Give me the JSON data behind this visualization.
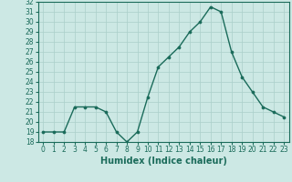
{
  "x": [
    0,
    1,
    2,
    3,
    4,
    5,
    6,
    7,
    8,
    9,
    10,
    11,
    12,
    13,
    14,
    15,
    16,
    17,
    18,
    19,
    20,
    21,
    22,
    23
  ],
  "y": [
    19,
    19,
    19,
    21.5,
    21.5,
    21.5,
    21,
    19,
    18,
    19,
    22.5,
    25.5,
    26.5,
    27.5,
    29,
    30,
    31.5,
    31,
    27,
    24.5,
    23,
    21.5,
    21,
    20.5
  ],
  "line_color": "#1a6b5a",
  "marker_color": "#1a6b5a",
  "bg_color": "#cce8e4",
  "grid_color": "#aacfca",
  "xlabel": "Humidex (Indice chaleur)",
  "ylim": [
    18,
    32
  ],
  "yticks": [
    18,
    19,
    20,
    21,
    22,
    23,
    24,
    25,
    26,
    27,
    28,
    29,
    30,
    31,
    32
  ],
  "xticks": [
    0,
    1,
    2,
    3,
    4,
    5,
    6,
    7,
    8,
    9,
    10,
    11,
    12,
    13,
    14,
    15,
    16,
    17,
    18,
    19,
    20,
    21,
    22,
    23
  ],
  "tick_label_fontsize": 5.5,
  "xlabel_fontsize": 7.0
}
